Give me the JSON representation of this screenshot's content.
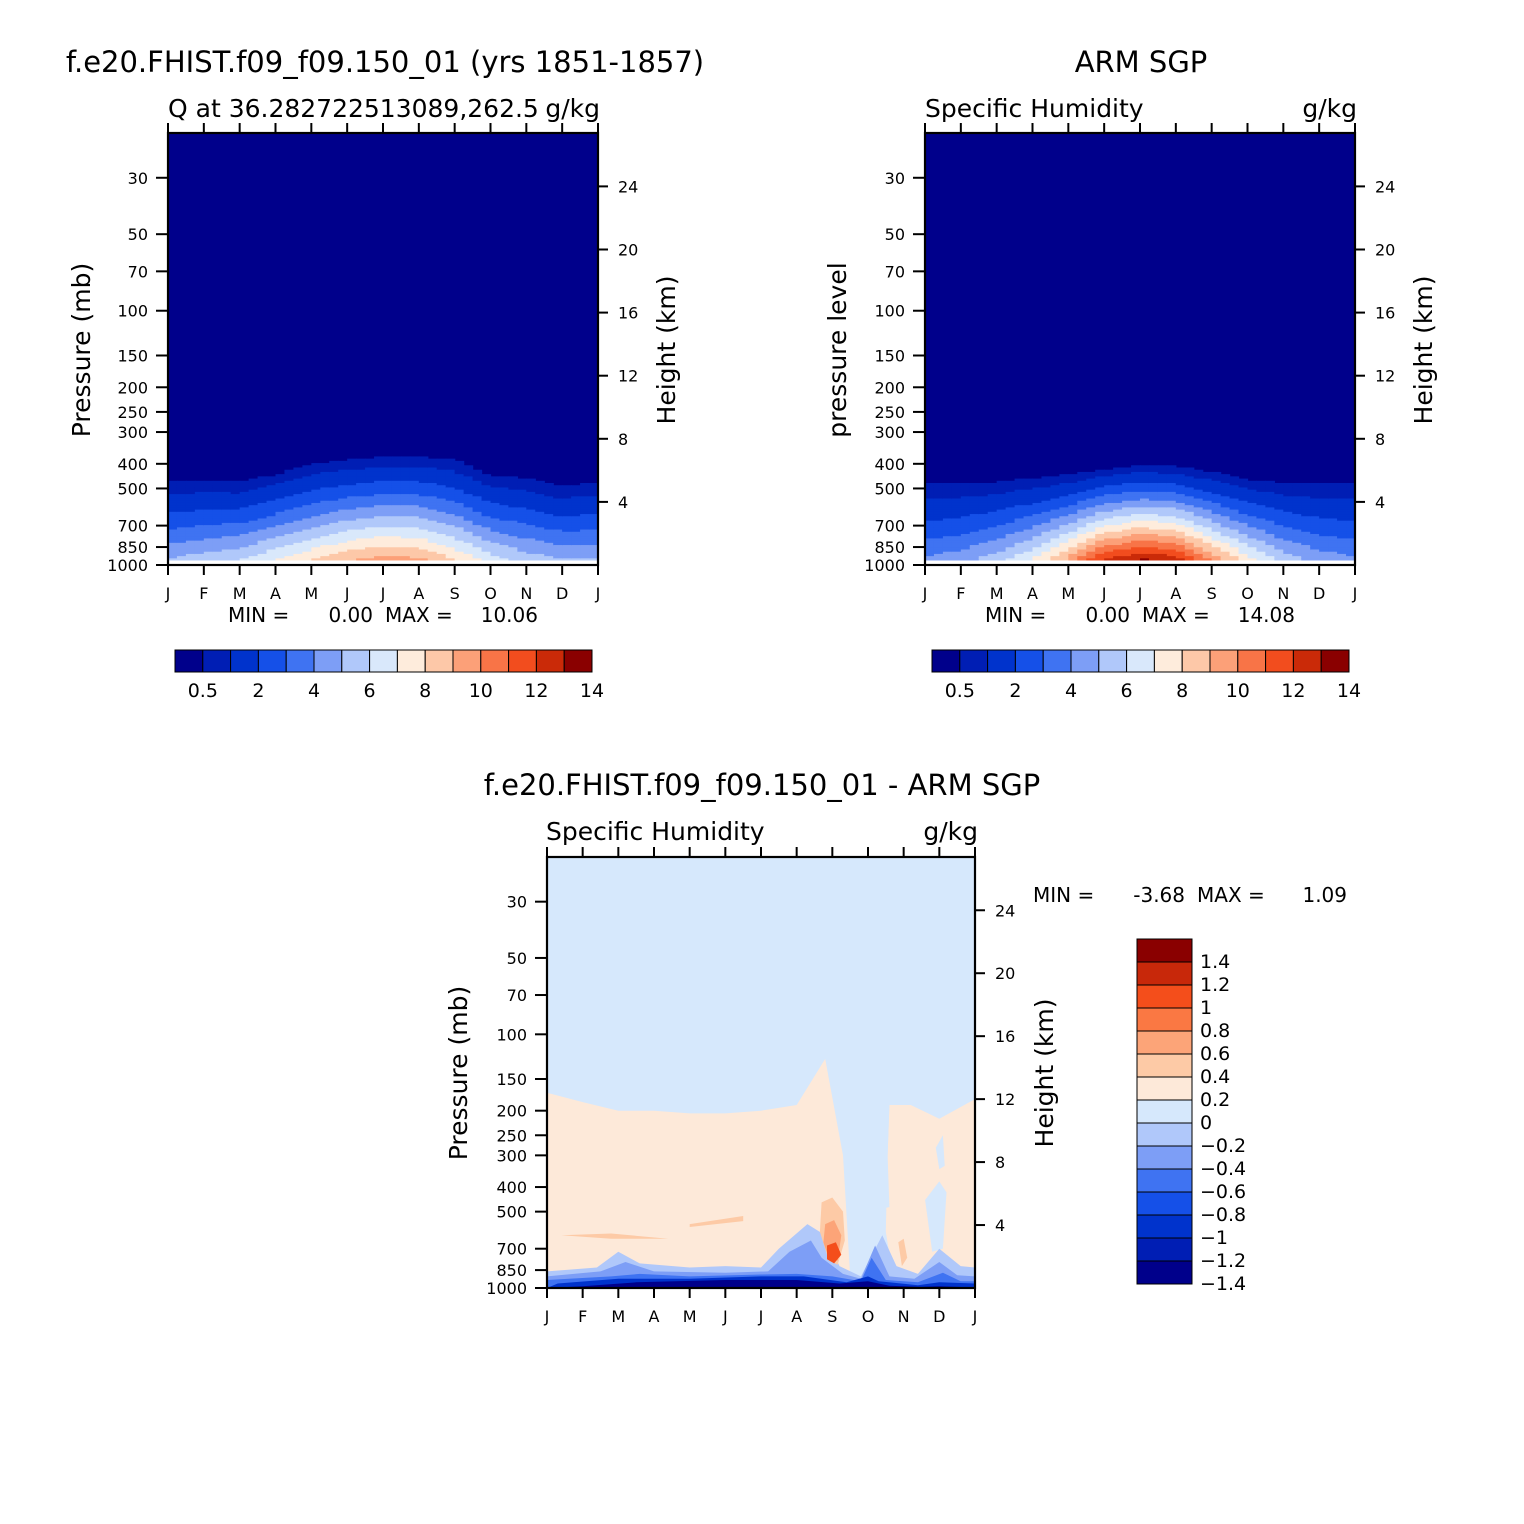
{
  "chart_data": [
    {
      "type": "heatmap",
      "panel": "model",
      "title": "f.e20.FHIST.f09_f09.150_01 (yrs 1851-1857)",
      "left_string": "Q at 36.282722513089,262.5",
      "right_string": "g/kg",
      "ylabel": "Pressure (mb)",
      "ylabel_right": "Height (km)",
      "x_ticks": [
        "J",
        "F",
        "M",
        "A",
        "M",
        "J",
        "J",
        "A",
        "S",
        "O",
        "N",
        "D",
        "J"
      ],
      "y_ticks": [
        30,
        50,
        70,
        100,
        150,
        200,
        250,
        300,
        400,
        500,
        700,
        850,
        1000
      ],
      "y_ticks_right": [
        24,
        20,
        16,
        12,
        8,
        4
      ],
      "ylim": [
        1000,
        20
      ],
      "y_scale": "log",
      "levels": [
        0.5,
        1,
        2,
        3,
        4,
        5,
        6,
        7,
        8,
        9,
        10,
        11,
        12,
        13,
        14
      ],
      "colorbar_labels": [
        "0.5",
        "2",
        "4",
        "6",
        "8",
        "10",
        "12",
        "14"
      ],
      "colorbar_orientation": "horizontal",
      "min_label": "MIN =",
      "min_value": "0.00",
      "max_label": "MAX =",
      "max_value": "10.06",
      "grid": false,
      "months": [
        "J",
        "F",
        "M",
        "A",
        "M",
        "J",
        "J",
        "A",
        "S",
        "O",
        "N",
        "D",
        "J"
      ],
      "surface_value": [
        5.5,
        6.0,
        6.5,
        7.5,
        8.5,
        9.5,
        10.0,
        9.8,
        8.5,
        7.0,
        6.0,
        5.5,
        5.5
      ],
      "moist_top_pressure": [
        465,
        465,
        470,
        440,
        400,
        385,
        375,
        375,
        385,
        445,
        455,
        490,
        470
      ]
    },
    {
      "type": "heatmap",
      "panel": "observations",
      "title": "ARM SGP",
      "left_string": "Specific Humidity",
      "right_string": "g/kg",
      "ylabel": "pressure level",
      "ylabel_right": "Height (km)",
      "x_ticks": [
        "J",
        "F",
        "M",
        "A",
        "M",
        "J",
        "J",
        "A",
        "S",
        "O",
        "N",
        "D",
        "J"
      ],
      "y_ticks": [
        30,
        50,
        70,
        100,
        150,
        200,
        250,
        300,
        400,
        500,
        700,
        850,
        1000
      ],
      "y_ticks_right": [
        24,
        20,
        16,
        12,
        8,
        4
      ],
      "ylim": [
        1000,
        20
      ],
      "y_scale": "log",
      "levels": [
        0.5,
        1,
        2,
        3,
        4,
        5,
        6,
        7,
        8,
        9,
        10,
        11,
        12,
        13,
        14
      ],
      "colorbar_labels": [
        "0.5",
        "2",
        "4",
        "6",
        "8",
        "10",
        "12",
        "14"
      ],
      "colorbar_orientation": "horizontal",
      "min_label": "MIN =",
      "min_value": "0.00",
      "max_label": "MAX =",
      "max_value": "14.08",
      "grid": false,
      "months": [
        "J",
        "F",
        "M",
        "A",
        "M",
        "J",
        "J",
        "A",
        "S",
        "O",
        "N",
        "D",
        "J"
      ],
      "surface_value": [
        4.5,
        5.0,
        6.0,
        7.5,
        10.0,
        13.0,
        14.0,
        13.5,
        10.5,
        8.0,
        6.0,
        5.0,
        4.5
      ],
      "moist_top_pressure": [
        480,
        480,
        470,
        455,
        440,
        420,
        405,
        410,
        430,
        460,
        475,
        480,
        480
      ]
    },
    {
      "type": "heatmap",
      "panel": "difference",
      "title": "f.e20.FHIST.f09_f09.150_01 - ARM SGP",
      "left_string": "Specific Humidity",
      "right_string": "g/kg",
      "ylabel": "Pressure (mb)",
      "ylabel_right": "Height (km)",
      "x_ticks": [
        "J",
        "F",
        "M",
        "A",
        "M",
        "J",
        "J",
        "A",
        "S",
        "O",
        "N",
        "D",
        "J"
      ],
      "y_ticks": [
        30,
        50,
        70,
        100,
        150,
        200,
        250,
        300,
        400,
        500,
        700,
        850,
        1000
      ],
      "y_ticks_right": [
        24,
        20,
        16,
        12,
        8,
        4
      ],
      "ylim": [
        1000,
        20
      ],
      "y_scale": "log",
      "levels": [
        -1.4,
        -1.2,
        -1,
        -0.8,
        -0.6,
        -0.4,
        -0.2,
        0,
        0.2,
        0.4,
        0.6,
        0.8,
        1,
        1.2,
        1.4
      ],
      "colorbar_labels": [
        "1.4",
        "1.2",
        "1",
        "0.8",
        "0.6",
        "0.4",
        "0.2",
        "0",
        "-0.2",
        "-0.4",
        "-0.6",
        "-0.8",
        "-1",
        "-1.2",
        "-1.4"
      ],
      "colorbar_orientation": "vertical",
      "min_label": "MIN =",
      "min_value": "-3.68",
      "max_label": "MAX =",
      "max_value": "1.09",
      "grid": false,
      "months": [
        "J",
        "F",
        "M",
        "A",
        "M",
        "J",
        "J",
        "A",
        "S",
        "O",
        "N",
        "D",
        "J"
      ],
      "positive_region_top_pressure": [
        170,
        185,
        200,
        200,
        205,
        205,
        200,
        190,
        125,
        1000,
        190,
        215,
        180
      ]
    }
  ],
  "palettes": {
    "absolute": [
      "#00008b",
      "#001eb4",
      "#0033cc",
      "#1550e8",
      "#3f73f2",
      "#7d9ef6",
      "#b0c8fa",
      "#d9e8fb",
      "#feecdc",
      "#fdc8a8",
      "#fca078",
      "#f87447",
      "#f24d1e",
      "#ca2a08",
      "#8a0000"
    ],
    "difference": [
      "#00008b",
      "#001eb4",
      "#0033cc",
      "#1550e8",
      "#3f73f2",
      "#7d9ef6",
      "#b0c8fa",
      "#d6e8fc",
      "#fde9d9",
      "#fdcaa6",
      "#fca478",
      "#fa7843",
      "#f44e1b",
      "#c8280a",
      "#8a0000"
    ]
  }
}
